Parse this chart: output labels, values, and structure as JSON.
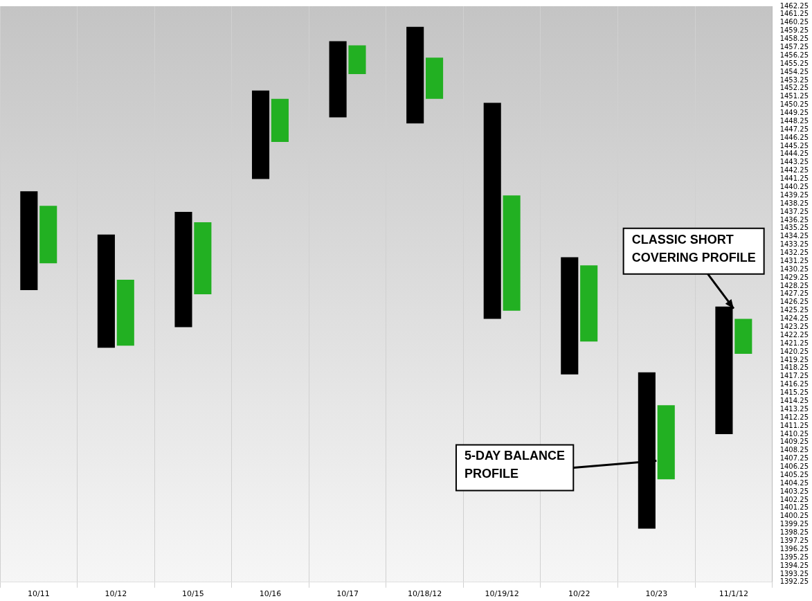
{
  "chart_data": {
    "type": "bar",
    "categories": [
      "10/11",
      "10/12",
      "10/15",
      "10/16",
      "10/17",
      "10/18/12",
      "10/19/12",
      "10/22",
      "10/23",
      "11/1/12"
    ],
    "series": [
      {
        "color": "#000000",
        "base": [
          1427.75,
          1420.75,
          1423.25,
          1441.25,
          1448.75,
          1448,
          1424.25,
          1417.5,
          1398.75,
          1410.25
        ],
        "values": [
          12,
          13.75,
          14,
          10.75,
          9.25,
          11.75,
          26.25,
          14.25,
          19,
          15.5
        ]
      },
      {
        "color": "#22b022",
        "base": [
          1431,
          1421,
          1427.25,
          1445.75,
          1454,
          1451,
          1425.25,
          1421.5,
          1404.75,
          1420
        ],
        "values": [
          7,
          8,
          8.75,
          5.25,
          3.5,
          5,
          14,
          9.25,
          9,
          4.25
        ]
      }
    ],
    "ylim": [
      1392.25,
      1462.25
    ],
    "yticks": [
      1392.25,
      1393.25,
      1394.25,
      1395.25,
      1396.25,
      1397.25,
      1398.25,
      1399.25,
      1400.25,
      1401.25,
      1402.25,
      1403.25,
      1404.25,
      1405.25,
      1406.25,
      1407.25,
      1408.25,
      1409.25,
      1410.25,
      1411.25,
      1412.25,
      1413.25,
      1414.25,
      1415.25,
      1416.25,
      1417.25,
      1418.25,
      1419.25,
      1420.25,
      1421.25,
      1422.25,
      1423.25,
      1424.25,
      1425.25,
      1426.25,
      1427.25,
      1428.25,
      1429.25,
      1430.25,
      1431.25,
      1432.25,
      1433.25,
      1434.25,
      1435.25,
      1436.25,
      1437.25,
      1438.25,
      1439.25,
      1440.25,
      1441.25,
      1442.25,
      1443.25,
      1444.25,
      1445.25,
      1446.25,
      1447.25,
      1448.25,
      1449.25,
      1450.25,
      1451.25,
      1452.25,
      1453.25,
      1454.25,
      1455.25,
      1456.25,
      1457.25,
      1458.25,
      1459.25,
      1460.25,
      1461.25,
      1462.25
    ],
    "grid": "x",
    "legend": false,
    "annotations": [
      {
        "text": "CLASSIC SHORT COVERING PROFILE",
        "x": "11/1/12",
        "y": 1425.5
      },
      {
        "text": "5-DAY BALANCE PROFILE",
        "x": "10/23",
        "y": 1407
      }
    ]
  }
}
